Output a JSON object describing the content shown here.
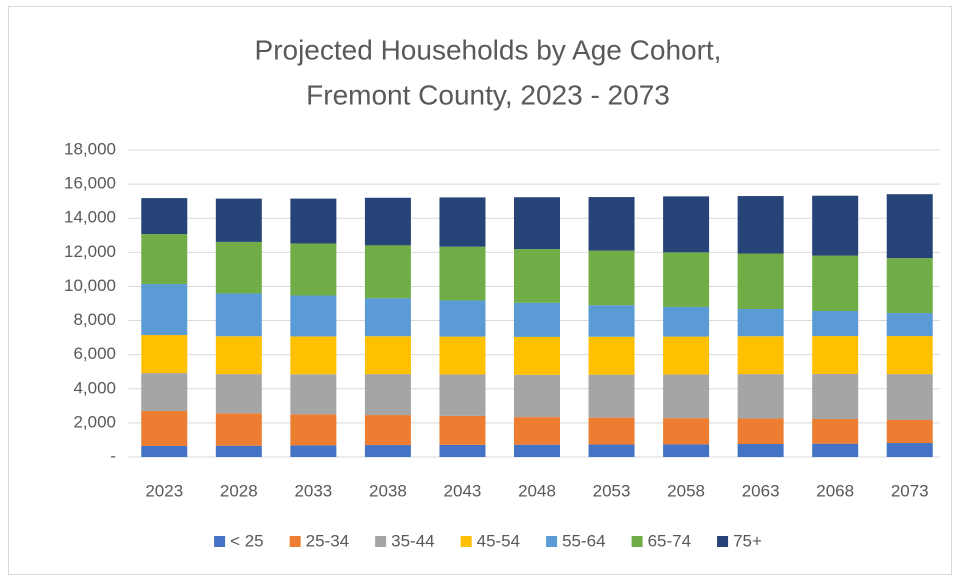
{
  "chart_data": {
    "type": "stacked_bar",
    "title": [
      "Projected Households by Age Cohort,",
      "Fremont County, 2023 - 2073"
    ],
    "categories": [
      "2023",
      "2028",
      "2033",
      "2038",
      "2043",
      "2048",
      "2053",
      "2058",
      "2063",
      "2068",
      "2073"
    ],
    "series": [
      {
        "name": "< 25",
        "color": "#4472c4",
        "values": [
          650,
          660,
          680,
          700,
          710,
          720,
          730,
          740,
          760,
          780,
          820
        ]
      },
      {
        "name": "25-34",
        "color": "#ed7d31",
        "values": [
          2050,
          1900,
          1820,
          1760,
          1700,
          1620,
          1580,
          1540,
          1500,
          1450,
          1350
        ]
      },
      {
        "name": "35-44",
        "color": "#a5a5a5",
        "values": [
          2220,
          2300,
          2350,
          2400,
          2430,
          2480,
          2520,
          2560,
          2600,
          2640,
          2690
        ]
      },
      {
        "name": "45-54",
        "color": "#ffc000",
        "values": [
          2230,
          2220,
          2220,
          2220,
          2220,
          2220,
          2220,
          2220,
          2220,
          2220,
          2230
        ]
      },
      {
        "name": "55-64",
        "color": "#5b9bd5",
        "values": [
          2990,
          2510,
          2400,
          2230,
          2120,
          2000,
          1850,
          1740,
          1600,
          1470,
          1350
        ]
      },
      {
        "name": "65-74",
        "color": "#70ad47",
        "values": [
          2930,
          3020,
          3050,
          3100,
          3150,
          3150,
          3200,
          3200,
          3250,
          3250,
          3220
        ]
      },
      {
        "name": "75+",
        "color": "#264478",
        "values": [
          2110,
          2540,
          2630,
          2790,
          2890,
          3040,
          3140,
          3280,
          3370,
          3510,
          3750
        ]
      }
    ],
    "ylim": [
      0,
      18000
    ],
    "yticks": [
      {
        "value": 0,
        "label": "-"
      },
      {
        "value": 2000,
        "label": "2,000"
      },
      {
        "value": 4000,
        "label": "4,000"
      },
      {
        "value": 6000,
        "label": "6,000"
      },
      {
        "value": 8000,
        "label": "8,000"
      },
      {
        "value": 10000,
        "label": "10,000"
      },
      {
        "value": 12000,
        "label": "12,000"
      },
      {
        "value": 14000,
        "label": "14,000"
      },
      {
        "value": 16000,
        "label": "16,000"
      },
      {
        "value": 18000,
        "label": "18,000"
      }
    ],
    "grid": true,
    "legend": "bottom"
  }
}
